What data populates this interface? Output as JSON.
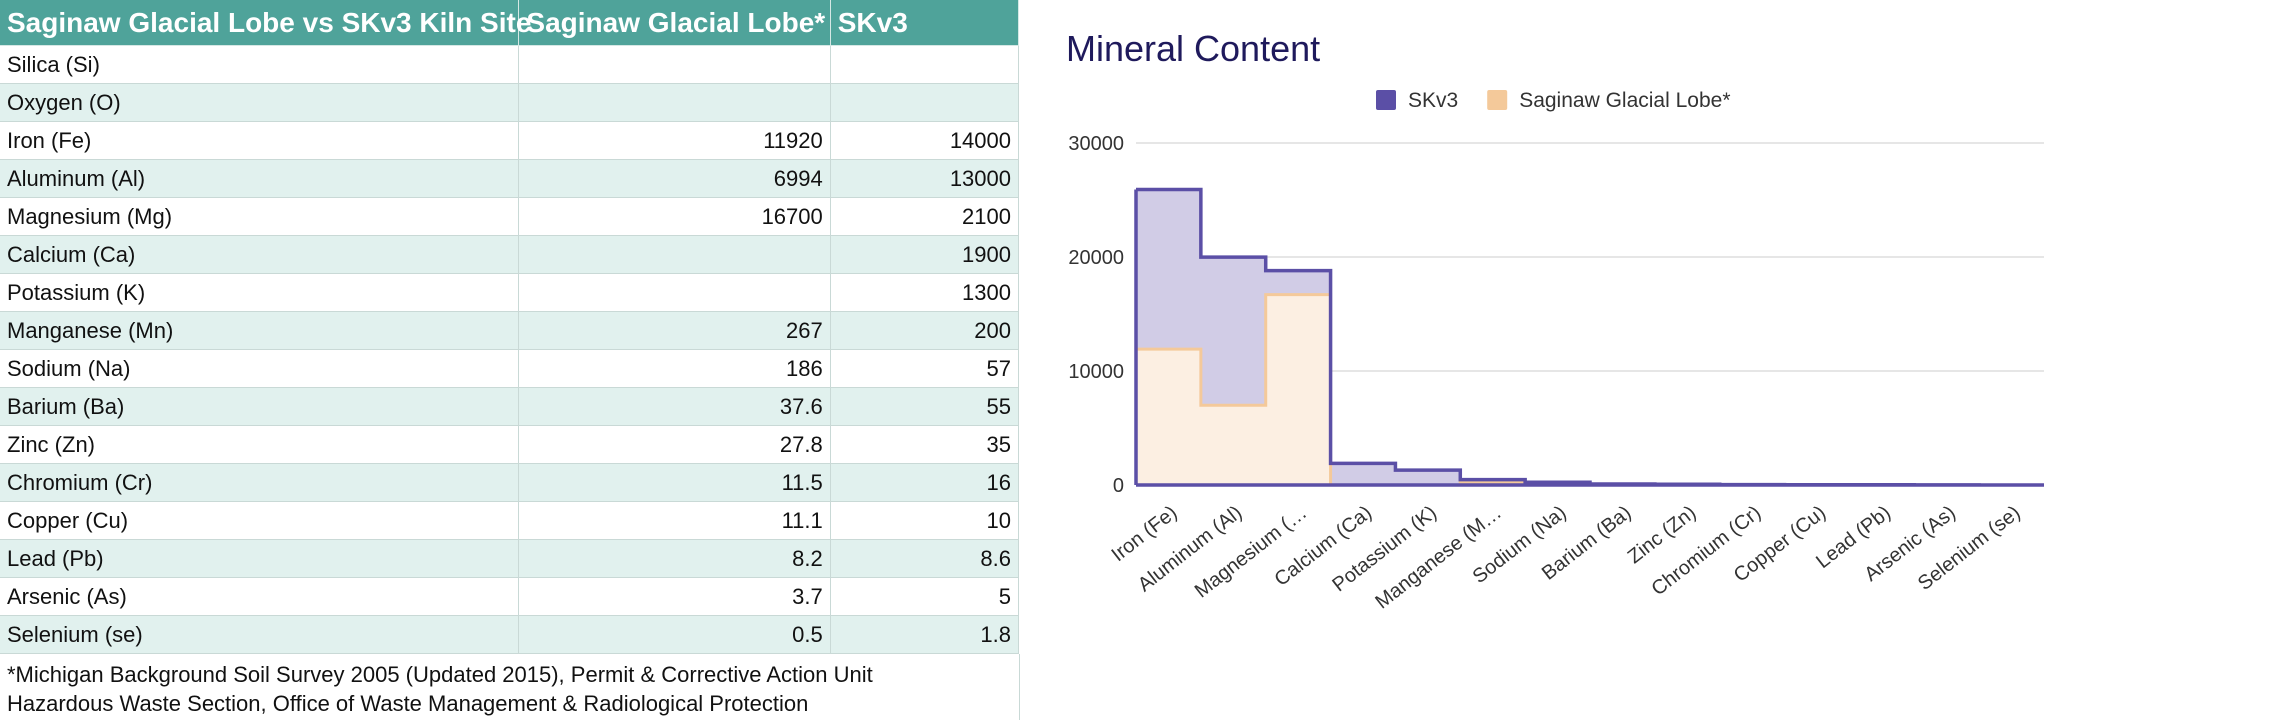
{
  "table": {
    "headers": [
      "Saginaw Glacial Lobe vs SKv3 Kiln Site",
      "Saginaw Glacial Lobe*",
      "SKv3"
    ],
    "rows": [
      [
        "Silica (Si)",
        "",
        ""
      ],
      [
        "Oxygen (O)",
        "",
        ""
      ],
      [
        "Iron (Fe)",
        "11920",
        "14000"
      ],
      [
        "Aluminum (Al)",
        "6994",
        "13000"
      ],
      [
        "Magnesium (Mg)",
        "16700",
        "2100"
      ],
      [
        "Calcium (Ca)",
        "",
        "1900"
      ],
      [
        "Potassium (K)",
        "",
        "1300"
      ],
      [
        "Manganese (Mn)",
        "267",
        "200"
      ],
      [
        "Sodium (Na)",
        "186",
        "57"
      ],
      [
        "Barium (Ba)",
        "37.6",
        "55"
      ],
      [
        "Zinc (Zn)",
        "27.8",
        "35"
      ],
      [
        "Chromium (Cr)",
        "11.5",
        "16"
      ],
      [
        "Copper (Cu)",
        "11.1",
        "10"
      ],
      [
        "Lead (Pb)",
        "8.2",
        "8.6"
      ],
      [
        "Arsenic (As)",
        "3.7",
        "5"
      ],
      [
        "Selenium (se)",
        "0.5",
        "1.8"
      ]
    ],
    "footnote_line1": "*Michigan Background Soil Survey 2005 (Updated 2015), Permit & Corrective Action Unit",
    "footnote_line2": "Hazardous Waste Section, Office of Waste Management & Radiological Protection"
  },
  "chart_data": {
    "type": "area",
    "stacked": true,
    "stepped": true,
    "title": "Mineral Content",
    "xlabel": "",
    "ylabel": "",
    "ylim": [
      0,
      30000
    ],
    "yticks": [
      0,
      10000,
      20000,
      30000
    ],
    "grid": true,
    "legend_position": "top",
    "categories": [
      "Iron (Fe)",
      "Aluminum (Al)",
      "Magnesium (…",
      "Calcium (Ca)",
      "Potassium (K)",
      "Manganese (M…",
      "Sodium (Na)",
      "Barium (Ba)",
      "Zinc (Zn)",
      "Chromium (Cr)",
      "Copper (Cu)",
      "Lead (Pb)",
      "Arsenic (As)",
      "Selenium (se)"
    ],
    "series": [
      {
        "name": "Saginaw Glacial Lobe*",
        "color": "#f4c99a",
        "fill": "#fcefe2",
        "values": [
          11920,
          6994,
          16700,
          0,
          0,
          267,
          186,
          37.6,
          27.8,
          11.5,
          11.1,
          8.2,
          3.7,
          0.5
        ]
      },
      {
        "name": "SKv3",
        "color": "#5b4fa6",
        "fill": "#d1cce6",
        "values": [
          14000,
          13000,
          2100,
          1900,
          1300,
          200,
          57,
          55,
          35,
          16,
          10,
          8.6,
          5,
          1.8
        ]
      }
    ],
    "legend_order": [
      "SKv3",
      "Saginaw Glacial Lobe*"
    ]
  }
}
